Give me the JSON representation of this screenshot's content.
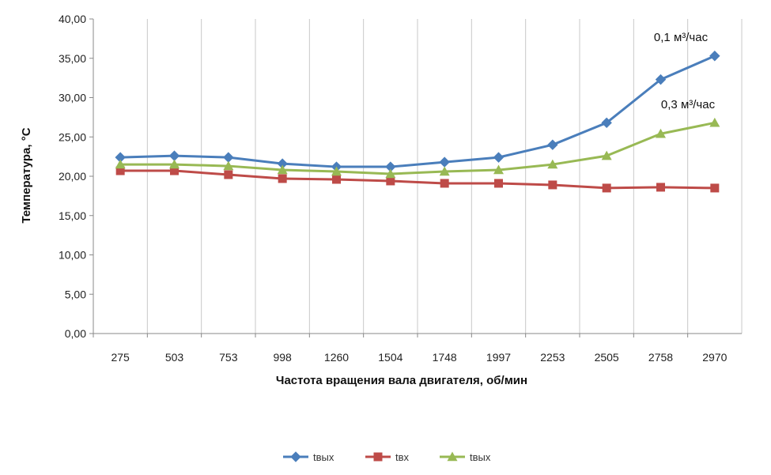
{
  "chart_data": {
    "type": "line",
    "xlabel": "Частота вращения вала двигателя, об/мин",
    "ylabel": "Температура, °C",
    "categories": [
      "275",
      "503",
      "753",
      "998",
      "1260",
      "1504",
      "1748",
      "1997",
      "2253",
      "2505",
      "2758",
      "2970"
    ],
    "ylim": [
      0,
      40
    ],
    "y_ticks": [
      "0,00",
      "5,00",
      "10,00",
      "15,00",
      "20,00",
      "25,00",
      "30,00",
      "35,00",
      "40,00"
    ],
    "grid": "vertical gridlines only",
    "legend_position": "bottom",
    "series": [
      {
        "name": "tвых",
        "color": "#4a7ebb",
        "marker": "diamond",
        "values": [
          22.4,
          22.6,
          22.4,
          21.6,
          21.2,
          21.2,
          21.8,
          22.4,
          24.0,
          26.8,
          32.3,
          35.3
        ]
      },
      {
        "name": "tвх",
        "color": "#be4b48",
        "marker": "square",
        "values": [
          20.7,
          20.7,
          20.2,
          19.7,
          19.6,
          19.4,
          19.1,
          19.1,
          18.9,
          18.5,
          18.6,
          18.5
        ]
      },
      {
        "name": "tвых",
        "color": "#98b954",
        "marker": "triangle",
        "values": [
          21.5,
          21.5,
          21.3,
          20.8,
          20.6,
          20.3,
          20.6,
          20.8,
          21.5,
          22.6,
          25.4,
          26.8
        ]
      }
    ],
    "annotations": [
      {
        "text": "0,1 м³/час",
        "series_index": 0
      },
      {
        "text": "0,3 м³/час",
        "series_index": 2
      }
    ]
  }
}
